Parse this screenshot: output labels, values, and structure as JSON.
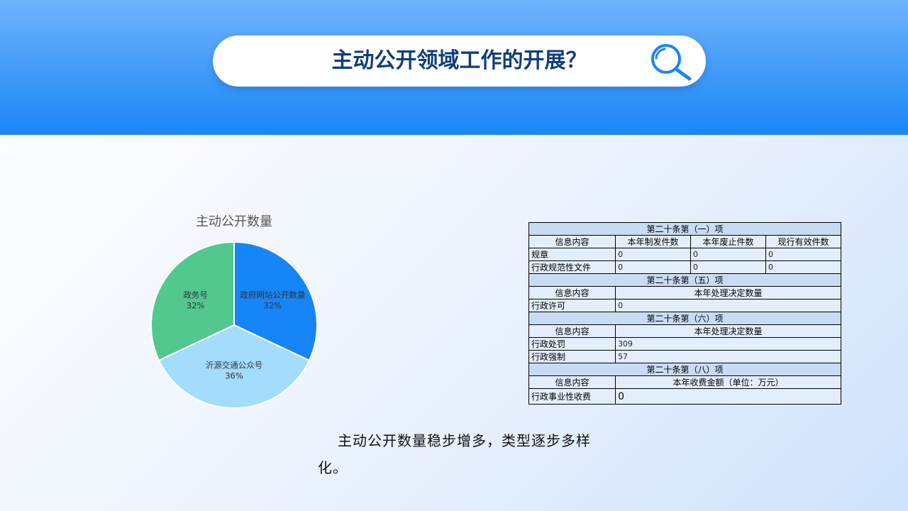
{
  "header": {
    "title": "主动公开领域工作的开展？",
    "icon": "search-icon"
  },
  "chart_data": {
    "type": "pie",
    "title": "主动公开数量",
    "slices": [
      {
        "label": "政府网站公开数量",
        "value": 32,
        "display": "32%",
        "color": "#1685f7"
      },
      {
        "label": "沂源交通公众号",
        "value": 36,
        "display": "36%",
        "color": "#a3dcfc"
      },
      {
        "label": "政务号",
        "value": 32,
        "display": "32%",
        "color": "#52c88f"
      }
    ]
  },
  "table": {
    "s1": {
      "title": "第二十条第（一）项",
      "headers": [
        "信息内容",
        "本年制发件数",
        "本年废止件数",
        "现行有效件数"
      ],
      "rows": [
        [
          "规章",
          "0",
          "0",
          "0"
        ],
        [
          "行政规范性文件",
          "0",
          "0",
          "0"
        ]
      ]
    },
    "s5": {
      "title": "第二十条第（五）项",
      "headers": [
        "信息内容",
        "本年处理决定数量"
      ],
      "rows": [
        [
          "行政许可",
          "0"
        ]
      ]
    },
    "s6": {
      "title": "第二十条第（六）项",
      "headers": [
        "信息内容",
        "本年处理决定数量"
      ],
      "rows": [
        [
          "行政处罚",
          "309"
        ],
        [
          "行政强制",
          "57"
        ]
      ]
    },
    "s8": {
      "title": "第二十条第（八）项",
      "headers": [
        "信息内容",
        "本年收费金额（单位：万元）"
      ],
      "rows": [
        [
          "行政事业性收费",
          "0"
        ]
      ]
    }
  },
  "description": "主动公开数量稳步增多，类型逐步多样化。"
}
